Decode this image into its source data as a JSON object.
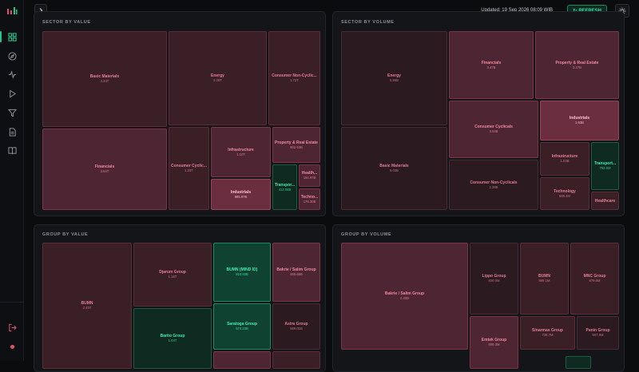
{
  "header": {
    "updated": "Updated: 19 Sep 2026 08:09 WIB",
    "refresh_label": "REFRESH",
    "refresh_icon": "↻"
  },
  "sections": {
    "sector_value": {
      "title": "SECTOR BY VALUE",
      "tiles": [
        {
          "name": "Basic Materials",
          "value": "4.24T"
        },
        {
          "name": "Energy",
          "value": "3.29T"
        },
        {
          "name": "Consumer Non-Cyclic...",
          "value": "1.72T"
        },
        {
          "name": "Financials",
          "value": "3.54T"
        },
        {
          "name": "Consumer Cyclic...",
          "value": "1.20T"
        },
        {
          "name": "Infrastructure",
          "value": "1.10T"
        },
        {
          "name": "Property & Real Estate",
          "value": "802.63B"
        },
        {
          "name": "Industrials",
          "value": "685.97B"
        },
        {
          "name": "Transpor...",
          "value": "412.08B"
        },
        {
          "name": "Health...",
          "value": "164.97B"
        },
        {
          "name": "Techno...",
          "value": "176.30B"
        }
      ]
    },
    "sector_volume": {
      "title": "SECTOR BY VOLUME",
      "tiles": [
        {
          "name": "Energy",
          "value": "5.86B"
        },
        {
          "name": "Financials",
          "value": "3.47B"
        },
        {
          "name": "Property & Real Estate",
          "value": "3.27B"
        },
        {
          "name": "Consumer Cyclicals",
          "value": "3.04B"
        },
        {
          "name": "Industrials",
          "value": "1.63B"
        },
        {
          "name": "Basic Materials",
          "value": "5.03B"
        },
        {
          "name": "Infrastructure",
          "value": "1.03B"
        },
        {
          "name": "Transport...",
          "value": "792.6M"
        },
        {
          "name": "Consumer Non-Cyclicals",
          "value": "2.39B"
        },
        {
          "name": "Technology",
          "value": "569.4M"
        },
        {
          "name": "Healthcare",
          "value": ""
        }
      ]
    },
    "group_value": {
      "title": "GROUP BY VALUE",
      "tiles": [
        {
          "name": "BUMN",
          "value": "2.45T"
        },
        {
          "name": "Djarum Group",
          "value": "1.16T"
        },
        {
          "name": "BUMN (MIND ID)",
          "value": "810.83B"
        },
        {
          "name": "Bakrie / Salim Group",
          "value": "655.66B"
        },
        {
          "name": "Barito Group",
          "value": "1.04T"
        },
        {
          "name": "Saratoga Group",
          "value": "574.23B"
        },
        {
          "name": "Astra Group",
          "value": "569.01B"
        },
        {
          "name": "",
          "value": ""
        },
        {
          "name": "",
          "value": ""
        }
      ]
    },
    "group_volume": {
      "title": "GROUP BY VOLUME",
      "tiles": [
        {
          "name": "Bakrie / Salim Group",
          "value": "2.40B"
        },
        {
          "name": "Lippo Group",
          "value": "828.0M"
        },
        {
          "name": "BUMN",
          "value": "809.1M"
        },
        {
          "name": "MNC Group",
          "value": "879.6M"
        },
        {
          "name": "Sinarmas Group",
          "value": "728.7M"
        },
        {
          "name": "Panin Group",
          "value": "597.9M"
        },
        {
          "name": "Emtek Group",
          "value": "608.3M"
        },
        {
          "name": "",
          "value": ""
        }
      ]
    }
  }
}
